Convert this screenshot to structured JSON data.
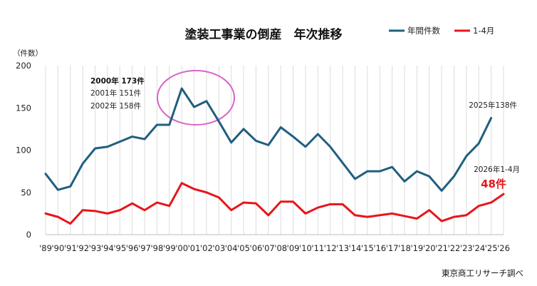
{
  "chart_data": {
    "type": "line",
    "title": "塗装工事業の倒産　年次推移",
    "unit_label": "（件数）",
    "x": [
      "'89",
      "'90",
      "'91",
      "'92",
      "'93",
      "'94",
      "'95",
      "'96",
      "'97",
      "'98",
      "'99",
      "'00",
      "'01",
      "'02",
      "'03",
      "'04",
      "'05",
      "'06",
      "'07",
      "'08",
      "'09",
      "'10",
      "'11",
      "'12",
      "'13",
      "'14",
      "'15",
      "'16",
      "'17",
      "'18",
      "'19",
      "'20",
      "'21",
      "'22",
      "'23",
      "'24",
      "'25",
      "'26"
    ],
    "yticks": [
      0,
      50,
      100,
      150,
      200
    ],
    "ylim": [
      0,
      200
    ],
    "series": [
      {
        "name": "年間件数",
        "color": "#1f5f7f",
        "values": [
          72,
          53,
          57,
          84,
          102,
          104,
          110,
          116,
          113,
          130,
          130,
          173,
          151,
          158,
          134,
          109,
          125,
          111,
          106,
          127,
          116,
          104,
          119,
          104,
          85,
          66,
          75,
          75,
          80,
          63,
          75,
          69,
          52,
          69,
          93,
          108,
          138,
          null
        ]
      },
      {
        "name": "1-4月",
        "color": "#e8151b",
        "values": [
          25,
          21,
          13,
          29,
          28,
          25,
          29,
          37,
          29,
          38,
          34,
          61,
          54,
          50,
          44,
          29,
          38,
          37,
          23,
          39,
          39,
          25,
          32,
          36,
          36,
          23,
          21,
          23,
          25,
          22,
          19,
          29,
          16,
          21,
          23,
          34,
          38,
          48
        ]
      }
    ],
    "annotations": {
      "y2000": "2000年 173件",
      "y2001": "2001年 151件",
      "y2002": "2002年 158件",
      "y2025": "2025年138件",
      "y2026_label": "2026年1-4月",
      "y2026_value": "48件"
    },
    "grid": true,
    "legend_position": "top-right",
    "highlight_color": "#d865c6"
  },
  "source": "東京商工リサーチ調べ"
}
